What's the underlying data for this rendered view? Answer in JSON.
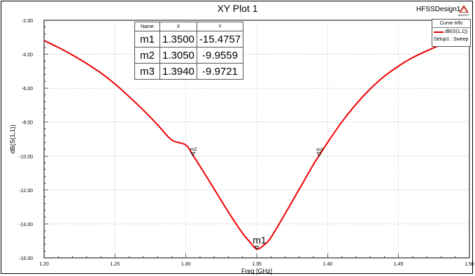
{
  "window": {
    "title": "XY Plot 1",
    "design_name": "HFSSDesign1",
    "logo_text": "ANSOFT"
  },
  "legend": {
    "header": "Curve Info",
    "series_label": "dB(S(1,1))",
    "setup_label": "Setup1 : Sweep",
    "series_color": "#ee0000"
  },
  "marker_table": {
    "headers": [
      "Name",
      "X",
      "Y"
    ],
    "rows": [
      [
        "m1",
        "1.3500",
        "-15.4757"
      ],
      [
        "m2",
        "1.3050",
        "-9.9559"
      ],
      [
        "m3",
        "1.3940",
        "-9.9721"
      ]
    ]
  },
  "chart_data": {
    "type": "line",
    "title": "XY Plot 1",
    "xlabel": "Freq [GHz]",
    "ylabel": "dB(S(1,1))",
    "xlim": [
      1.2,
      1.5
    ],
    "ylim": [
      -16.0,
      -2.0
    ],
    "x_ticks": [
      "1.20",
      "1.25",
      "1.30",
      "1.35",
      "1.40",
      "1.45",
      "1.50"
    ],
    "y_ticks": [
      "-2.00",
      "-4.00",
      "-6.00",
      "-8.00",
      "-10.00",
      "-12.00",
      "-14.00",
      "-16.00"
    ],
    "grid": true,
    "legend_position": "top-right",
    "series": [
      {
        "name": "dB(S(1,1))",
        "color": "#ee0000",
        "x": [
          1.2,
          1.21,
          1.22,
          1.23,
          1.24,
          1.25,
          1.26,
          1.27,
          1.28,
          1.29,
          1.3,
          1.305,
          1.31,
          1.32,
          1.33,
          1.34,
          1.345,
          1.35,
          1.355,
          1.36,
          1.37,
          1.38,
          1.39,
          1.394,
          1.4,
          1.41,
          1.42,
          1.43,
          1.44,
          1.45,
          1.46,
          1.47,
          1.48,
          1.49,
          1.5
        ],
        "y": [
          -3.2,
          -3.6,
          -4.05,
          -4.55,
          -5.1,
          -5.75,
          -6.5,
          -7.3,
          -8.15,
          -9.05,
          -9.35,
          -9.956,
          -10.6,
          -11.95,
          -13.3,
          -14.55,
          -15.05,
          -15.4757,
          -15.25,
          -14.8,
          -13.4,
          -11.95,
          -10.5,
          -9.972,
          -9.2,
          -8.0,
          -6.95,
          -6.05,
          -5.3,
          -4.7,
          -4.2,
          -3.8,
          -3.45,
          -3.18,
          -3.0
        ]
      }
    ],
    "markers": [
      {
        "name": "m1",
        "x": 1.35,
        "y": -15.4757
      },
      {
        "name": "m2",
        "x": 1.305,
        "y": -9.9559
      },
      {
        "name": "m3",
        "x": 1.394,
        "y": -9.9721
      }
    ]
  }
}
